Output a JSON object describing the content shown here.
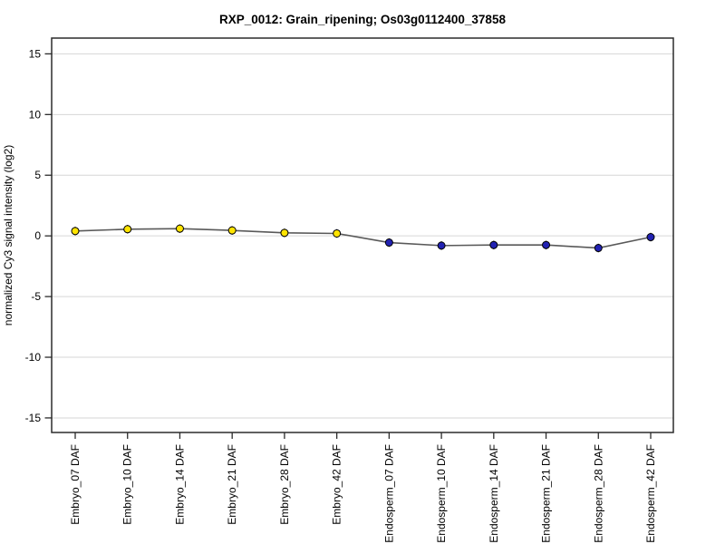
{
  "page": {
    "background": "#ffffff"
  },
  "chart_data": {
    "type": "line",
    "title": "RXP_0012: Grain_ripening; Os03g0112400_37858",
    "xlabel": "",
    "ylabel": "normalized Cy3 signal intensity (log2)",
    "categories": [
      "Embryo_07 DAF",
      "Embryo_10 DAF",
      "Embryo_14 DAF",
      "Embryo_21 DAF",
      "Embryo_28 DAF",
      "Embryo_42 DAF",
      "Endosperm_07 DAF",
      "Endosperm_10 DAF",
      "Endosperm_14 DAF",
      "Endosperm_21 DAF",
      "Endosperm_28 DAF",
      "Endosperm_42 DAF"
    ],
    "series": [
      {
        "name": "normalized Cy3 signal",
        "values": [
          0.4,
          0.55,
          0.6,
          0.45,
          0.25,
          0.2,
          -0.55,
          -0.8,
          -0.75,
          -0.75,
          -1.0,
          -0.1
        ],
        "error_bar_half_height": 0.35,
        "line_color": "#595959"
      }
    ],
    "point_groups": [
      {
        "name": "Embryo",
        "indices": [
          0,
          1,
          2,
          3,
          4,
          5
        ],
        "fill": "#ffe400",
        "outline": "#000000"
      },
      {
        "name": "Endosperm",
        "indices": [
          6,
          7,
          8,
          9,
          10,
          11
        ],
        "fill": "#2222b2",
        "outline": "#000000"
      }
    ],
    "yticks": [
      -15,
      -10,
      -5,
      0,
      5,
      10,
      15
    ],
    "ylim": [
      -16.2,
      16.3
    ],
    "grid": true,
    "legend_position": "none"
  },
  "style": {
    "border_color": "#2b2b2b",
    "tick_color": "#2b2b2b",
    "grid_color": "#d6d6d6",
    "text_color": "#000000",
    "errorbar_color": "#000000"
  }
}
